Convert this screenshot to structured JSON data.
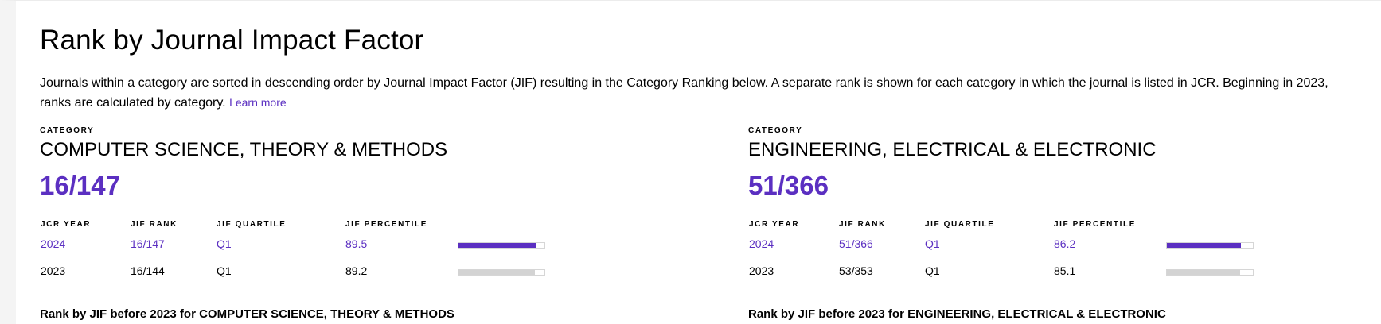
{
  "page": {
    "title": "Rank by Journal Impact Factor",
    "description": "Journals within a category are sorted in descending order by Journal Impact Factor (JIF) resulting in the Category Ranking below. A separate rank is shown for each category in which the journal is listed in JCR. Beginning in 2023, ranks are calculated by category.",
    "learn_more": "Learn more"
  },
  "columns": {
    "jcr_year": "JCR YEAR",
    "jif_rank": "JIF RANK",
    "jif_quartile": "JIF QUARTILE",
    "jif_percentile": "JIF PERCENTILE"
  },
  "colors": {
    "accent": "#5b2fc1",
    "bar_current": "#5b2fc1",
    "bar_previous": "#d3d3d3"
  },
  "categories": [
    {
      "label": "CATEGORY",
      "name": "COMPUTER SCIENCE, THEORY & METHODS",
      "rank": "16/147",
      "rows": [
        {
          "year": "2024",
          "rank": "16/147",
          "quartile": "Q1",
          "percentile": "89.5",
          "percentile_value": 89.5
        },
        {
          "year": "2023",
          "rank": "16/144",
          "quartile": "Q1",
          "percentile": "89.2",
          "percentile_value": 89.2
        }
      ],
      "before_2023": "Rank by JIF before 2023 for COMPUTER SCIENCE, THEORY & METHODS"
    },
    {
      "label": "CATEGORY",
      "name": "ENGINEERING, ELECTRICAL & ELECTRONIC",
      "rank": "51/366",
      "rows": [
        {
          "year": "2024",
          "rank": "51/366",
          "quartile": "Q1",
          "percentile": "86.2",
          "percentile_value": 86.2
        },
        {
          "year": "2023",
          "rank": "53/353",
          "quartile": "Q1",
          "percentile": "85.1",
          "percentile_value": 85.1
        }
      ],
      "before_2023": "Rank by JIF before 2023 for ENGINEERING, ELECTRICAL & ELECTRONIC"
    }
  ]
}
